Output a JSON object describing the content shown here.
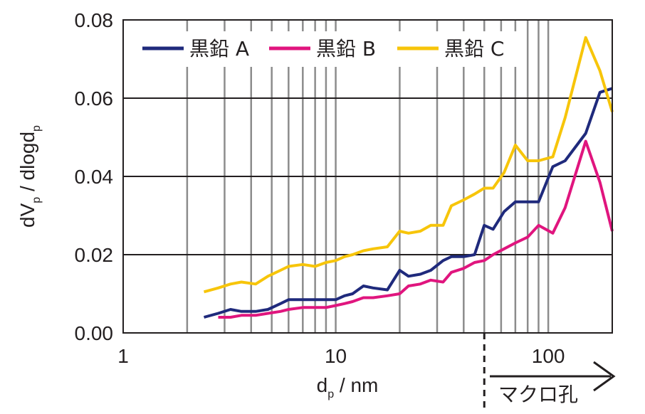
{
  "chart_data": {
    "type": "line",
    "xscale": "log",
    "xlim": [
      1,
      200
    ],
    "ylim": [
      0,
      0.08
    ],
    "xlabel": {
      "base": "d",
      "sub": "p",
      "rest": " / nm"
    },
    "ylabel": {
      "a": "dV",
      "sub1": "p",
      "b": " / dlogd",
      "sub2": "p"
    },
    "x_ticks": [
      "1",
      "10",
      "100"
    ],
    "x_tick_values": [
      1,
      10,
      100
    ],
    "y_ticks": [
      "0.00",
      "0.02",
      "0.04",
      "0.06",
      "0.08"
    ],
    "y_tick_values": [
      0,
      0.02,
      0.04,
      0.06,
      0.08
    ],
    "grid": "log-minor vertical gray, major horizontal black",
    "legend_position": "top",
    "annotation": {
      "text": "マクロ孔",
      "threshold_x": 50
    },
    "series": [
      {
        "name": "黒鉛 A",
        "color": "#1f2a7c",
        "x": [
          2.4,
          2.8,
          3.2,
          3.6,
          4.2,
          4.8,
          5.5,
          6.0,
          7.0,
          8.0,
          9.0,
          10.0,
          11.0,
          12.0,
          13.5,
          15.0,
          17.5,
          20.0,
          22.0,
          25.0,
          28.0,
          32.0,
          35.0,
          40.0,
          45.0,
          50.0,
          55.0,
          62.0,
          70.0,
          80.0,
          90.0,
          105.0,
          120.0,
          150.0,
          175.0,
          200.0
        ],
        "y": [
          0.004,
          0.005,
          0.006,
          0.0055,
          0.0055,
          0.006,
          0.0075,
          0.0085,
          0.0085,
          0.0085,
          0.0085,
          0.0085,
          0.0095,
          0.01,
          0.012,
          0.0115,
          0.011,
          0.016,
          0.0145,
          0.015,
          0.016,
          0.0185,
          0.0195,
          0.0195,
          0.02,
          0.0275,
          0.0265,
          0.031,
          0.0335,
          0.0335,
          0.0335,
          0.0425,
          0.044,
          0.051,
          0.0615,
          0.0625
        ]
      },
      {
        "name": "黒鉛 B",
        "color": "#e0157e",
        "x": [
          2.8,
          3.2,
          3.6,
          4.2,
          4.8,
          5.5,
          6.0,
          7.0,
          8.0,
          9.0,
          10.0,
          11.0,
          12.0,
          13.5,
          15.0,
          17.5,
          20.0,
          22.0,
          25.0,
          28.0,
          32.0,
          35.0,
          40.0,
          45.0,
          50.0,
          55.0,
          62.0,
          70.0,
          80.0,
          90.0,
          105.0,
          120.0,
          150.0,
          175.0,
          200.0
        ],
        "y": [
          0.004,
          0.004,
          0.0045,
          0.0045,
          0.005,
          0.0055,
          0.006,
          0.0065,
          0.0065,
          0.0065,
          0.007,
          0.0075,
          0.008,
          0.009,
          0.009,
          0.0095,
          0.01,
          0.012,
          0.0125,
          0.0135,
          0.013,
          0.0155,
          0.0165,
          0.018,
          0.0185,
          0.02,
          0.0215,
          0.023,
          0.0245,
          0.0275,
          0.0255,
          0.032,
          0.049,
          0.0385,
          0.026
        ]
      },
      {
        "name": "黒鉛 C",
        "color": "#f7c50a",
        "x": [
          2.4,
          2.8,
          3.2,
          3.6,
          4.2,
          4.8,
          5.5,
          6.0,
          7.0,
          8.0,
          9.0,
          10.0,
          11.0,
          12.0,
          13.5,
          15.0,
          17.5,
          20.0,
          22.0,
          25.0,
          28.0,
          32.0,
          35.0,
          40.0,
          45.0,
          50.0,
          55.0,
          62.0,
          70.0,
          80.0,
          90.0,
          105.0,
          120.0,
          150.0,
          175.0,
          200.0
        ],
        "y": [
          0.0105,
          0.0115,
          0.0125,
          0.013,
          0.0125,
          0.0145,
          0.016,
          0.017,
          0.0175,
          0.017,
          0.018,
          0.0185,
          0.0195,
          0.02,
          0.021,
          0.0215,
          0.022,
          0.026,
          0.0255,
          0.026,
          0.0275,
          0.0275,
          0.0325,
          0.034,
          0.0355,
          0.037,
          0.037,
          0.041,
          0.048,
          0.044,
          0.044,
          0.045,
          0.055,
          0.0755,
          0.067,
          0.0565
        ]
      }
    ]
  }
}
